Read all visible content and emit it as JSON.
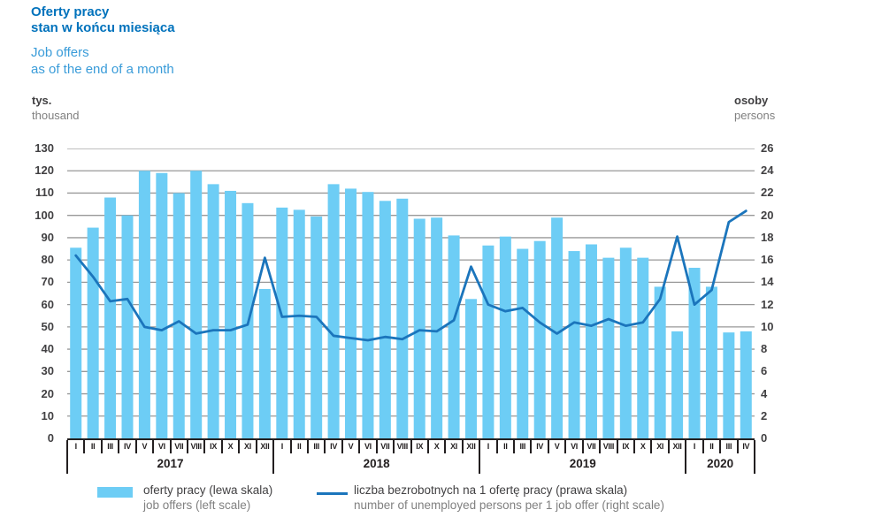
{
  "header": {
    "title_pl": "Oferty pracy",
    "subtitle_pl": "stan w końcu miesiąca",
    "title_en": "Job offers",
    "subtitle_en": "as of the end of a month"
  },
  "axes": {
    "left_unit_pl": "tys.",
    "left_unit_en": "thousand",
    "right_unit_pl": "osoby",
    "right_unit_en": "persons"
  },
  "legend": [
    {
      "type": "bar",
      "swatch_color": "#6DCDF5",
      "label_pl": "oferty pracy (lewa skala)",
      "label_en": "job offers (left scale)"
    },
    {
      "type": "line",
      "swatch_color": "#1B75BC",
      "label_pl": "liczba bezrobotnych na 1 ofertę pracy (prawa skala)",
      "label_en": "number of unemployed persons per 1 job offer (right scale)"
    }
  ],
  "chart_data": {
    "type": "bar+line",
    "title": "Oferty pracy / Job offers",
    "grid": true,
    "grid_color": "#999999",
    "x_groups": [
      {
        "year": "2017",
        "months": [
          "I",
          "II",
          "III",
          "IV",
          "V",
          "VI",
          "VII",
          "VIII",
          "IX",
          "X",
          "XI",
          "XII"
        ]
      },
      {
        "year": "2018",
        "months": [
          "I",
          "II",
          "III",
          "IV",
          "V",
          "VI",
          "VII",
          "VIII",
          "IX",
          "X",
          "XI",
          "XII"
        ]
      },
      {
        "year": "2019",
        "months": [
          "I",
          "II",
          "III",
          "IV",
          "V",
          "VI",
          "VII",
          "VIII",
          "IX",
          "X",
          "XI",
          "XII"
        ]
      },
      {
        "year": "2020",
        "months": [
          "I",
          "II",
          "III",
          "IV"
        ]
      }
    ],
    "left_axis": {
      "min": 0,
      "max": 130,
      "step": 10,
      "unit": "tys. / thousand"
    },
    "right_axis": {
      "min": 0,
      "max": 26,
      "step": 2,
      "unit": "osoby / persons"
    },
    "series": [
      {
        "name": "oferty pracy (lewa skala)",
        "type": "bar",
        "axis": "left",
        "color": "#6DCDF5",
        "values": [
          85.5,
          94.5,
          108,
          100,
          120,
          119,
          110,
          120,
          114,
          111,
          105.5,
          67,
          103.5,
          102.5,
          99.5,
          114,
          112,
          110.5,
          106.5,
          107.5,
          98.5,
          99,
          91,
          62.5,
          86.5,
          90.5,
          85,
          88.5,
          99,
          84,
          87,
          81,
          85.5,
          81,
          68,
          48,
          76.5,
          68,
          47.5,
          48
        ]
      },
      {
        "name": "liczba bezrobotnych na 1 ofertę pracy (prawa skala)",
        "type": "line",
        "axis": "right",
        "color": "#1B75BC",
        "values": [
          16.4,
          14.5,
          12.3,
          12.5,
          10.0,
          9.7,
          10.5,
          9.4,
          9.7,
          9.7,
          10.2,
          16.2,
          10.9,
          11.0,
          10.9,
          9.2,
          9.0,
          8.8,
          9.1,
          8.9,
          9.7,
          9.6,
          10.6,
          15.4,
          12.0,
          11.4,
          11.7,
          10.4,
          9.4,
          10.4,
          10.1,
          10.7,
          10.1,
          10.4,
          12.5,
          18.1,
          12.0,
          13.3,
          19.4,
          20.4
        ]
      }
    ]
  }
}
